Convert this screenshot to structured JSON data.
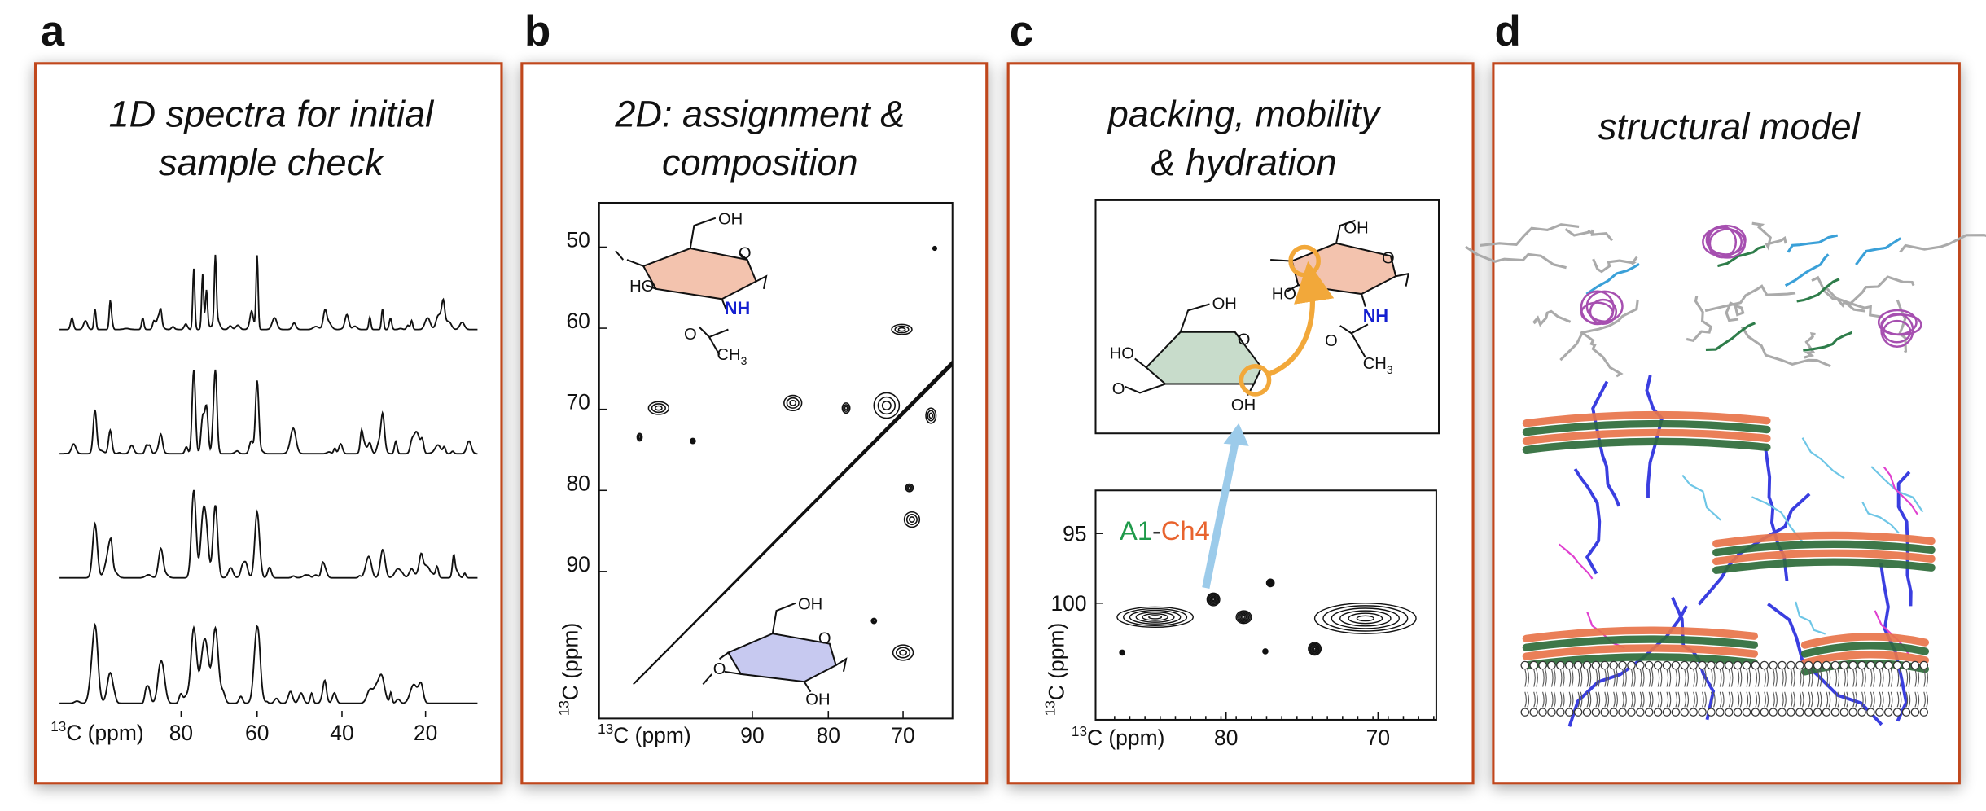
{
  "panels": [
    {
      "letter": "a",
      "title": [
        "1D spectra for initial",
        "sample check"
      ],
      "axis": {
        "x_label": {
          "sup": "13",
          "text": "C (ppm)"
        },
        "x_ticks": [
          80,
          60,
          40,
          20
        ]
      }
    },
    {
      "letter": "b",
      "title": [
        "2D: assignment &",
        "composition"
      ],
      "axis": {
        "x_label": {
          "sup": "13",
          "text": "C (ppm)"
        },
        "y_label": {
          "sup": "13",
          "text": "C (ppm)"
        },
        "x_ticks": [
          90,
          80,
          70
        ],
        "y_ticks": [
          50,
          60,
          70,
          80,
          90
        ]
      },
      "structures": {
        "top": {
          "oh": "OH",
          "ring_o": "O",
          "ho": "HO",
          "nh": "NH",
          "carbonyl_o": "O",
          "methyl": {
            "text": "CH",
            "sub": "3"
          }
        },
        "bottom": {
          "oh": "OH",
          "ring_o": "O",
          "link_o": "O",
          "oh2": "OH"
        }
      }
    },
    {
      "letter": "c",
      "title": [
        "packing, mobility",
        "& hydration"
      ],
      "axis": {
        "x_label": {
          "sup": "13",
          "text": "C (ppm)"
        },
        "y_label": {
          "sup": "13",
          "text": "C (ppm)"
        },
        "x_ticks": [
          80,
          70
        ],
        "y_ticks": [
          95,
          100
        ]
      },
      "annotation": {
        "first": "A1",
        "separator": "-",
        "second": "Ch4"
      },
      "structures": {
        "left": {
          "oh": "OH",
          "ho": "HO",
          "ring_o": "O",
          "link_o": "O",
          "oh2": "OH"
        },
        "right": {
          "oh": "OH",
          "ring_o": "O",
          "ho": "HO",
          "nh": "NH",
          "carbonyl_o": "O",
          "methyl": {
            "text": "CH",
            "sub": "3"
          }
        }
      }
    },
    {
      "letter": "d",
      "title": [
        "structural model"
      ]
    }
  ]
}
